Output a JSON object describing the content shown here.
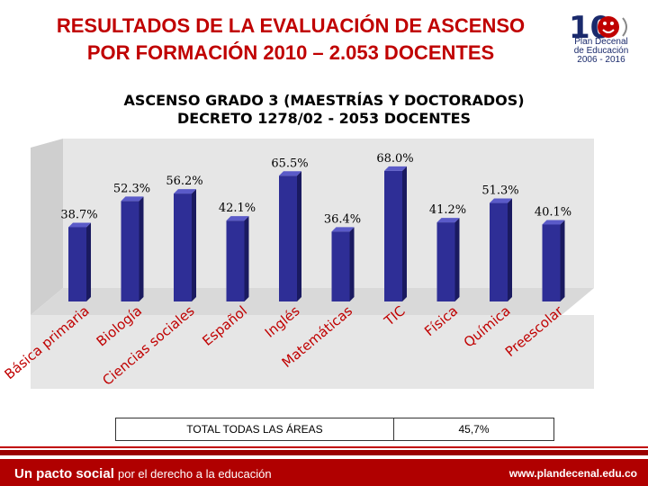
{
  "header": {
    "title_line1": "RESULTADOS DE LA EVALUACIÓN DE ASCENSO",
    "title_line2": "POR FORMACIÓN 2010 – 2.053 DOCENTES"
  },
  "logo": {
    "number": "10",
    "line1": "Plan Decenal",
    "line2": "de Educación",
    "line3": "2006 - 2016"
  },
  "chart_data": {
    "type": "bar",
    "title_line1": "ASCENSO GRADO 3 (MAESTRÍAS Y DOCTORADOS)",
    "title_line2": "DECRETO 1278/02 - 2053 DOCENTES",
    "categories": [
      "Básica primaria",
      "Biología",
      "Ciencias sociales",
      "Español",
      "Inglés",
      "Matemáticas",
      "TIC",
      "Física",
      "Química",
      "Preescolar"
    ],
    "values": [
      38.7,
      52.3,
      56.2,
      42.1,
      65.5,
      36.4,
      68.0,
      41.2,
      51.3,
      40.1
    ],
    "value_labels": [
      "38.7%",
      "52.3%",
      "56.2%",
      "42.1%",
      "65.5%",
      "36.4%",
      "68.0%",
      "41.2%",
      "51.3%",
      "40.1%"
    ],
    "ylim": [
      0,
      75
    ],
    "xlabel": "",
    "ylabel": "",
    "grid": false,
    "bar_color": "#2e2e96"
  },
  "totals": {
    "label": "TOTAL TODAS LAS ÁREAS",
    "value": "45,7%"
  },
  "footer": {
    "slogan_bold": "Un pacto social",
    "slogan_rest": "por el derecho a la educación",
    "url": "www.plandecenal.edu.co"
  },
  "colors": {
    "title": "#c00000",
    "footer_bg": "#b00000",
    "bar": "#2e2e96"
  }
}
